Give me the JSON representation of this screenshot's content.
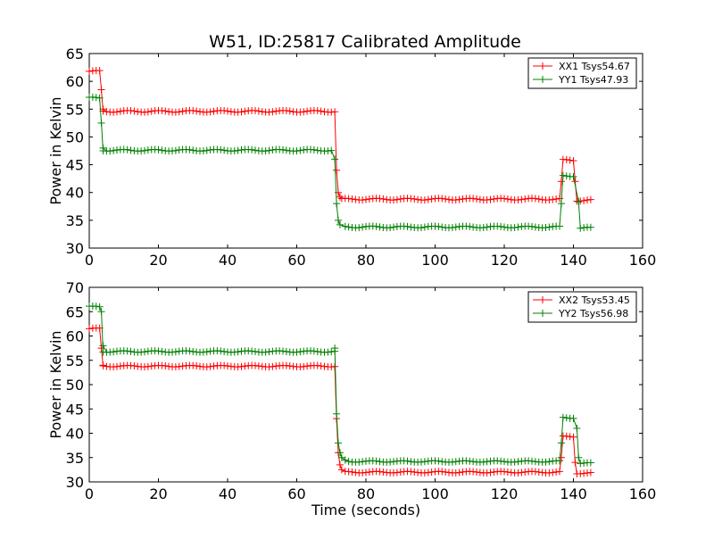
{
  "title": "W51, ID:25817 Calibrated Amplitude",
  "chart_data": [
    {
      "type": "line",
      "ylabel": "Power in Kelvin",
      "xlabel": "",
      "xlim": [
        0,
        160
      ],
      "ylim": [
        30,
        65
      ],
      "xticks": [
        0,
        20,
        40,
        60,
        80,
        100,
        120,
        140,
        160
      ],
      "yticks": [
        30,
        35,
        40,
        45,
        50,
        55,
        60,
        65
      ],
      "grid": false,
      "legend_position": "top-right",
      "series": [
        {
          "name": "XX1 Tsys54.67",
          "color": "#ff0000",
          "marker": "+",
          "segments": [
            {
              "x_start": 0,
              "x_end": 3,
              "level": 61.8
            },
            {
              "x_start": 4,
              "x_end": 71,
              "level": 54.6
            },
            {
              "x_start": 73,
              "x_end": 136,
              "level": 38.8
            },
            {
              "x_start": 137,
              "x_end": 140,
              "level": 45.8
            },
            {
              "x_start": 141,
              "x_end": 145,
              "level": 38.6
            }
          ],
          "transitions": [
            [
              3.5,
              58.5
            ],
            [
              4,
              55.0
            ],
            [
              71.5,
              44.0
            ],
            [
              72,
              40.0
            ],
            [
              72.5,
              39.2
            ],
            [
              136.5,
              42.0
            ],
            [
              140.5,
              42.0
            ]
          ]
        },
        {
          "name": "YY1 Tsys47.93",
          "color": "#008000",
          "marker": "+",
          "segments": [
            {
              "x_start": 0,
              "x_end": 3,
              "level": 57.0
            },
            {
              "x_start": 4,
              "x_end": 70,
              "level": 47.6
            },
            {
              "x_start": 74,
              "x_end": 136,
              "level": 33.8
            },
            {
              "x_start": 137,
              "x_end": 140,
              "level": 43.0
            },
            {
              "x_start": 142,
              "x_end": 145,
              "level": 33.6
            }
          ],
          "transitions": [
            [
              3.5,
              52.5
            ],
            [
              4,
              48.0
            ],
            [
              71,
              46.0
            ],
            [
              71.5,
              38.0
            ],
            [
              72,
              35.0
            ],
            [
              72.5,
              34.2
            ],
            [
              136.5,
              38.0
            ],
            [
              141.5,
              38.3
            ]
          ]
        }
      ]
    },
    {
      "type": "line",
      "ylabel": "Power in Kelvin",
      "xlabel": "Time (seconds)",
      "xlim": [
        0,
        160
      ],
      "ylim": [
        30,
        70
      ],
      "xticks": [
        0,
        20,
        40,
        60,
        80,
        100,
        120,
        140,
        160
      ],
      "yticks": [
        30,
        35,
        40,
        45,
        50,
        55,
        60,
        65,
        70
      ],
      "grid": false,
      "legend_position": "top-right",
      "series": [
        {
          "name": "XX2 Tsys53.45",
          "color": "#ff0000",
          "marker": "+",
          "segments": [
            {
              "x_start": 0,
              "x_end": 3,
              "level": 61.5
            },
            {
              "x_start": 4,
              "x_end": 71,
              "level": 53.8
            },
            {
              "x_start": 74,
              "x_end": 136,
              "level": 32.0
            },
            {
              "x_start": 137,
              "x_end": 140,
              "level": 39.3
            },
            {
              "x_start": 141,
              "x_end": 145,
              "level": 31.8
            }
          ],
          "transitions": [
            [
              3.5,
              57.5
            ],
            [
              4,
              54.0
            ],
            [
              71.5,
              43.0
            ],
            [
              72,
              36.0
            ],
            [
              72.5,
              33.5
            ],
            [
              73,
              32.5
            ],
            [
              136.5,
              35.0
            ],
            [
              140.5,
              34.0
            ]
          ]
        },
        {
          "name": "YY2 Tsys56.98",
          "color": "#008000",
          "marker": "+",
          "segments": [
            {
              "x_start": 0,
              "x_end": 3,
              "level": 66.0
            },
            {
              "x_start": 4,
              "x_end": 71,
              "level": 56.8
            },
            {
              "x_start": 75,
              "x_end": 136,
              "level": 34.2
            },
            {
              "x_start": 137,
              "x_end": 140,
              "level": 43.2
            },
            {
              "x_start": 142,
              "x_end": 145,
              "level": 33.8
            }
          ],
          "transitions": [
            [
              3.5,
              65.0
            ],
            [
              4,
              58.0
            ],
            [
              71,
              57.5
            ],
            [
              71.5,
              44.0
            ],
            [
              72,
              38.0
            ],
            [
              72.5,
              36.0
            ],
            [
              73,
              35.0
            ],
            [
              74,
              34.5
            ],
            [
              136.5,
              38.0
            ],
            [
              141,
              41.0
            ],
            [
              141.5,
              35.0
            ]
          ]
        }
      ]
    }
  ]
}
